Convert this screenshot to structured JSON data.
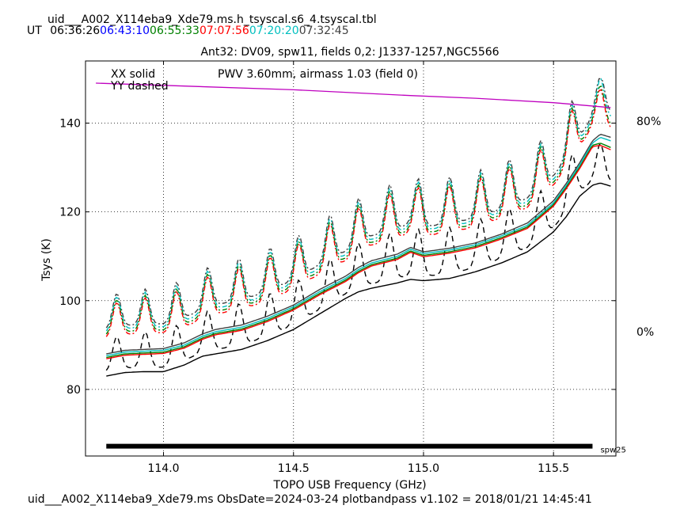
{
  "header": {
    "filename": "uid___A002_X114eba9_Xde79.ms.h_tsyscal.s6_4.tsyscal.tbl",
    "ut_label": "UT",
    "times": [
      {
        "text": "06:36:26",
        "color": "#000000"
      },
      {
        "text": "06:43:10",
        "color": "#0000ff"
      },
      {
        "text": "06:55:33",
        "color": "#008000"
      },
      {
        "text": "07:07:56",
        "color": "#ff0000"
      },
      {
        "text": "07:20:20",
        "color": "#00bfbf"
      },
      {
        "text": "07:32:45",
        "color": "#404040"
      }
    ]
  },
  "footer": {
    "text": "uid___A002_X114eba9_Xde79.ms  ObsDate=2024-03-24   plotbandpass v1.102 = 2018/01/21 14:45:41"
  },
  "chart_data": {
    "type": "line",
    "title": "Ant32: DV09,  spw11,  fields 0,2: J1337-1257,NGC5566",
    "xlabel": "TOPO USB Frequency (GHz)",
    "ylabel": "Tsys (K)",
    "xlim": [
      113.7,
      115.74
    ],
    "ylim": [
      65,
      154
    ],
    "xticks": [
      114.0,
      114.5,
      115.0,
      115.5
    ],
    "xtick_labels": [
      "114.0",
      "114.5",
      "115.0",
      "115.5"
    ],
    "yticks": [
      80,
      100,
      120,
      140
    ],
    "ytick_labels": [
      "80",
      "100",
      "120",
      "140"
    ],
    "grid": true,
    "legend_text": {
      "xx": "XX solid",
      "yy": "YY dashed"
    },
    "pwv": {
      "label": "PWV 3.60mm, airmass 1.03 (field 0)",
      "color": "#bf00bf",
      "right_axis_top": "80%",
      "right_axis_bottom": "0%",
      "x": [
        113.74,
        114.0,
        114.5,
        114.95,
        115.2,
        115.5,
        115.72
      ],
      "y": [
        149.0,
        148.5,
        147.5,
        146.2,
        145.6,
        144.6,
        143.5
      ]
    },
    "spw_bar": {
      "label": "spw25",
      "x_start": 113.78,
      "x_end": 115.65,
      "y": 67.2
    },
    "base_x": [
      113.78,
      113.85,
      113.92,
      114.0,
      114.08,
      114.15,
      114.2,
      114.3,
      114.4,
      114.5,
      114.6,
      114.7,
      114.75,
      114.8,
      114.9,
      114.95,
      115.0,
      115.1,
      115.2,
      115.3,
      115.4,
      115.5,
      115.55,
      115.6,
      115.65,
      115.68,
      115.72
    ],
    "series": [
      {
        "name": "07:32:45",
        "color": "#404040",
        "dash": false,
        "y": [
          88.0,
          88.8,
          89.0,
          89.2,
          90.5,
          92.5,
          93.5,
          94.5,
          96.5,
          99.0,
          102.5,
          105.5,
          107.5,
          109.0,
          110.5,
          112.0,
          111.0,
          111.8,
          113.0,
          115.0,
          117.5,
          122.5,
          126.5,
          131.0,
          136.0,
          137.5,
          136.8
        ]
      },
      {
        "name": "07:20:20",
        "color": "#00bfbf",
        "dash": false,
        "y": [
          87.6,
          88.4,
          88.6,
          88.8,
          90.0,
          92.0,
          93.0,
          94.0,
          96.0,
          98.6,
          102.0,
          105.0,
          107.0,
          108.5,
          110.0,
          111.6,
          110.6,
          111.4,
          112.6,
          114.6,
          117.0,
          122.0,
          126.0,
          130.5,
          135.5,
          136.8,
          136.0
        ]
      },
      {
        "name": "06:55:33",
        "color": "#008000",
        "dash": false,
        "y": [
          87.2,
          88.0,
          88.2,
          88.4,
          89.6,
          91.6,
          92.6,
          93.6,
          95.6,
          98.2,
          101.6,
          104.6,
          106.6,
          108.1,
          109.6,
          111.2,
          110.2,
          111.0,
          112.2,
          114.2,
          116.6,
          121.6,
          125.6,
          130.0,
          135.0,
          135.5,
          134.5
        ]
      },
      {
        "name": "07:07:56",
        "color": "#ff0000",
        "dash": false,
        "y": [
          86.9,
          87.7,
          87.9,
          88.1,
          89.3,
          91.3,
          92.3,
          93.3,
          95.3,
          97.9,
          101.3,
          104.3,
          106.3,
          107.8,
          109.3,
          110.9,
          109.9,
          110.7,
          111.9,
          113.9,
          116.3,
          121.3,
          125.3,
          129.7,
          134.7,
          135.0,
          134.0
        ]
      },
      {
        "name": "06:36:26",
        "color": "#000000",
        "dash": false,
        "y": [
          83.0,
          83.8,
          84.0,
          84.0,
          85.5,
          87.5,
          88.0,
          89.0,
          91.0,
          93.5,
          97.0,
          100.5,
          102.0,
          102.8,
          104.0,
          104.8,
          104.5,
          105.0,
          106.5,
          108.5,
          111.0,
          115.5,
          119.0,
          123.5,
          126.0,
          126.5,
          125.8
        ]
      }
    ],
    "dashed_series": [
      {
        "name": "07:32:45",
        "color": "#404040",
        "dash": true,
        "offset": 0.6
      },
      {
        "name": "07:20:20",
        "color": "#00bfbf",
        "dash": true,
        "offset": 0.3
      },
      {
        "name": "06:55:33",
        "color": "#008000",
        "dash": true,
        "offset": 0.0
      },
      {
        "name": "07:07:56",
        "color": "#ff0000",
        "dash": true,
        "offset": -0.3
      },
      {
        "name": "06:36:26",
        "color": "#000000",
        "dash": true,
        "offset": -4.0
      }
    ],
    "dashed_peaks": {
      "x": [
        113.82,
        113.93,
        114.05,
        114.17,
        114.29,
        114.41,
        114.52,
        114.64,
        114.75,
        114.87,
        114.98,
        115.1,
        115.22,
        115.33,
        115.45,
        115.57,
        115.68
      ],
      "height": [
        7.5,
        8.0,
        8.5,
        9.0,
        9.5,
        9.5,
        9.5,
        10.0,
        10.0,
        10.5,
        10.5,
        10.5,
        10.5,
        10.5,
        10.5,
        11.0,
        8.0
      ]
    }
  }
}
